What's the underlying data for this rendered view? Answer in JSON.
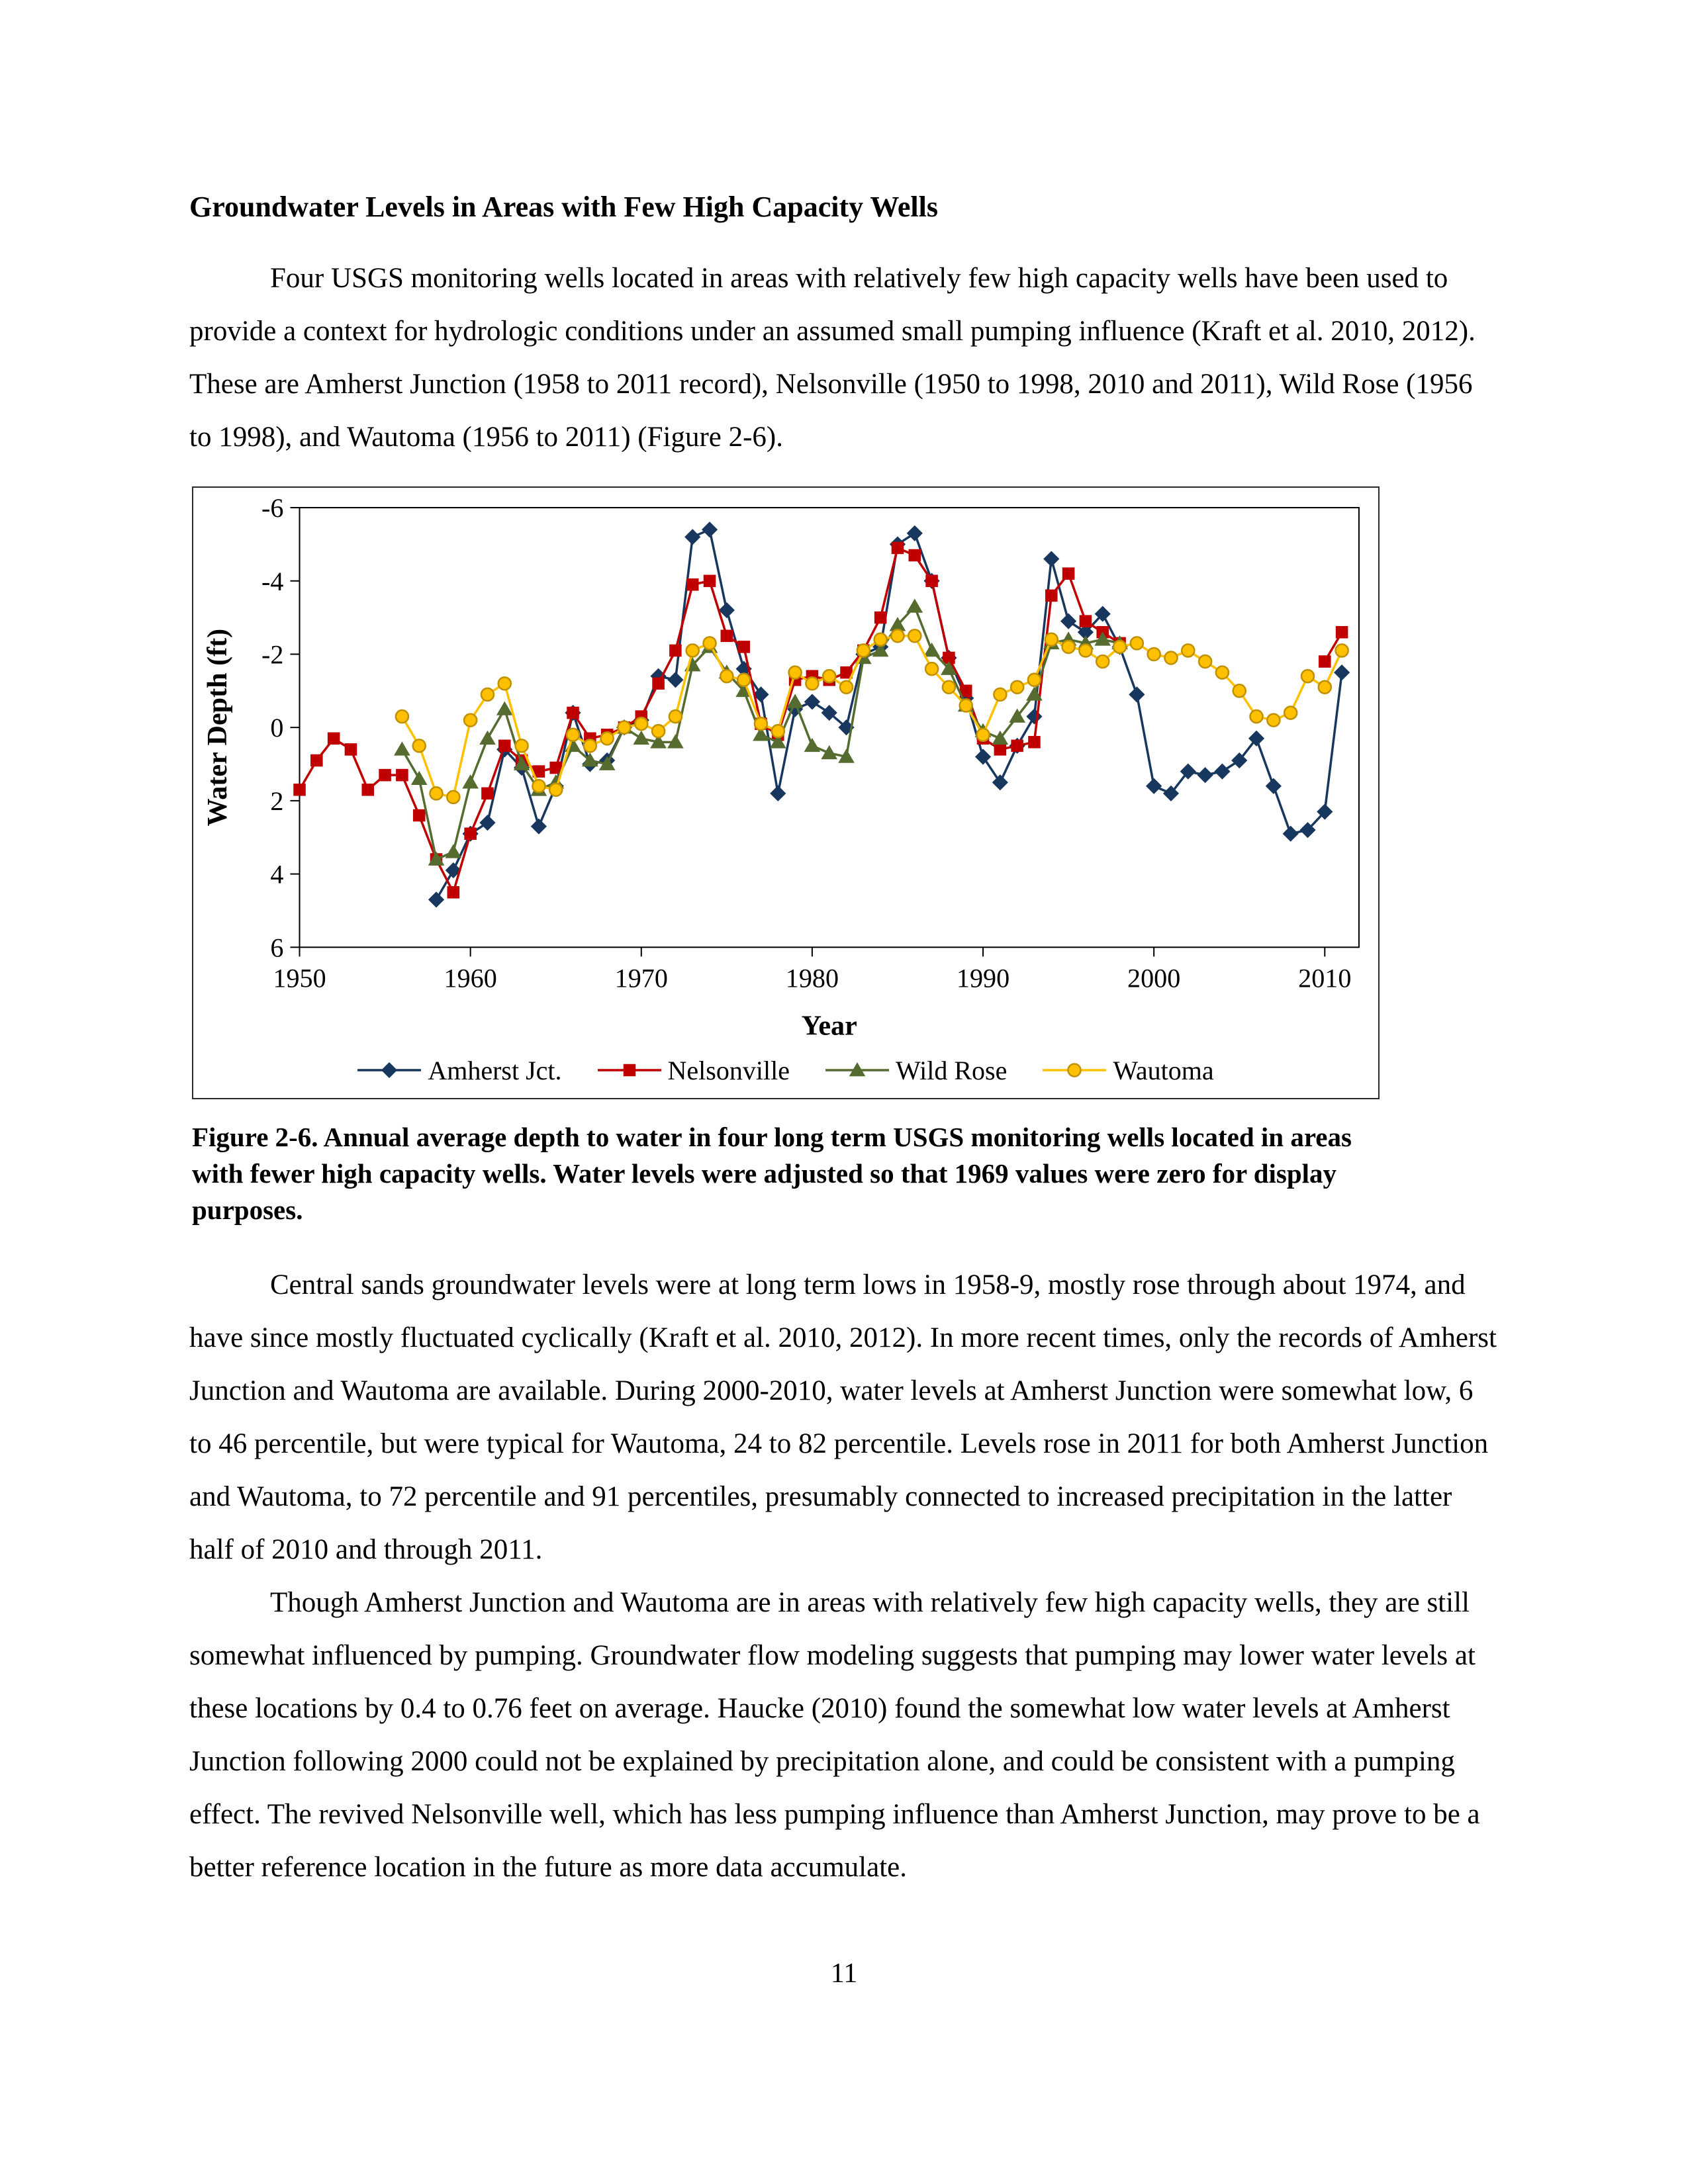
{
  "page": {
    "heading": "Groundwater Levels in Areas with Few High Capacity Wells",
    "para1": "Four USGS monitoring wells located in areas with relatively few high capacity wells have been used to provide a context for hydrologic conditions under an assumed small pumping influence (Kraft et al. 2010, 2012).  These are Amherst Junction (1958 to 2011 record), Nelsonville (1950 to 1998, 2010 and 2011), Wild Rose (1956 to 1998), and Wautoma (1956 to 2011) (Figure 2-6).",
    "caption": "Figure 2-6.  Annual average depth to water in four long term USGS monitoring wells located in areas with fewer high capacity wells.  Water levels were adjusted so that 1969 values were zero for display purposes.",
    "para2": "Central sands groundwater levels were at long term lows in 1958-9, mostly rose through about 1974, and have since mostly fluctuated cyclically (Kraft et al. 2010, 2012).  In more recent times, only the records of Amherst Junction and Wautoma are available.  During 2000-2010, water levels at Amherst Junction were somewhat low, 6 to 46 percentile, but were typical for Wautoma, 24 to 82 percentile.  Levels rose in 2011 for both Amherst Junction and Wautoma, to 72 percentile and 91 percentiles, presumably connected to increased precipitation in the latter half of 2010 and through 2011.",
    "para3": "Though Amherst Junction and Wautoma are in areas with relatively few high capacity wells, they are still somewhat influenced by pumping.  Groundwater flow modeling suggests that pumping may lower water levels at these locations by 0.4 to 0.76 feet on average.  Haucke (2010) found the somewhat low water levels at Amherst Junction following 2000 could not be explained by precipitation alone, and could be consistent with a pumping effect. The revived Nelsonville well, which has less pumping influence than Amherst Junction, may prove to be a better reference location in the future as more data accumulate.",
    "page_number": "11"
  },
  "chart_data": {
    "type": "line",
    "title": "",
    "xlabel": "Year",
    "ylabel": "Water Depth (ft)",
    "xlim": [
      1950,
      2012
    ],
    "ylim_top_bottom": [
      -6,
      6
    ],
    "y_inverted": true,
    "grid": false,
    "legend_position": "bottom",
    "x_ticks": [
      1950,
      1960,
      1970,
      1980,
      1990,
      2000,
      2010
    ],
    "y_ticks": [
      -6,
      -4,
      -2,
      0,
      2,
      4,
      6
    ],
    "series": [
      {
        "name": "Amherst Jct.",
        "color": "#17375E",
        "marker": "diamond",
        "points": [
          [
            1958,
            4.7
          ],
          [
            1959,
            3.9
          ],
          [
            1960,
            2.9
          ],
          [
            1961,
            2.6
          ],
          [
            1962,
            0.6
          ],
          [
            1963,
            1.1
          ],
          [
            1964,
            2.7
          ],
          [
            1965,
            1.6
          ],
          [
            1966,
            -0.4
          ],
          [
            1967,
            1.0
          ],
          [
            1968,
            0.9
          ],
          [
            1969,
            0.0
          ],
          [
            1970,
            -0.2
          ],
          [
            1971,
            -1.4
          ],
          [
            1972,
            -1.3
          ],
          [
            1973,
            -5.2
          ],
          [
            1974,
            -5.4
          ],
          [
            1975,
            -3.2
          ],
          [
            1976,
            -1.6
          ],
          [
            1977,
            -0.9
          ],
          [
            1978,
            1.8
          ],
          [
            1979,
            -0.5
          ],
          [
            1980,
            -0.7
          ],
          [
            1981,
            -0.4
          ],
          [
            1982,
            0.0
          ],
          [
            1983,
            -2.0
          ],
          [
            1984,
            -2.2
          ],
          [
            1985,
            -5.0
          ],
          [
            1986,
            -5.3
          ],
          [
            1987,
            -4.0
          ],
          [
            1988,
            -1.9
          ],
          [
            1989,
            -0.8
          ],
          [
            1990,
            0.8
          ],
          [
            1991,
            1.5
          ],
          [
            1992,
            0.5
          ],
          [
            1993,
            -0.3
          ],
          [
            1994,
            -4.6
          ],
          [
            1995,
            -2.9
          ],
          [
            1996,
            -2.6
          ],
          [
            1997,
            -3.1
          ],
          [
            1998,
            -2.2
          ],
          [
            1999,
            -0.9
          ],
          [
            2000,
            1.6
          ],
          [
            2001,
            1.8
          ],
          [
            2002,
            1.2
          ],
          [
            2003,
            1.3
          ],
          [
            2004,
            1.2
          ],
          [
            2005,
            0.9
          ],
          [
            2006,
            0.3
          ],
          [
            2007,
            1.6
          ],
          [
            2008,
            2.9
          ],
          [
            2009,
            2.8
          ],
          [
            2010,
            2.3
          ],
          [
            2011,
            -1.5
          ]
        ]
      },
      {
        "name": "Nelsonville",
        "color": "#C00000",
        "marker": "square",
        "points": [
          [
            1950,
            1.7
          ],
          [
            1951,
            0.9
          ],
          [
            1952,
            0.3
          ],
          [
            1953,
            0.6
          ],
          [
            1954,
            1.7
          ],
          [
            1955,
            1.3
          ],
          [
            1956,
            1.3
          ],
          [
            1957,
            2.4
          ],
          [
            1958,
            3.6
          ],
          [
            1959,
            4.5
          ],
          [
            1960,
            2.9
          ],
          [
            1961,
            1.8
          ],
          [
            1962,
            0.5
          ],
          [
            1963,
            0.9
          ],
          [
            1964,
            1.2
          ],
          [
            1965,
            1.1
          ],
          [
            1966,
            -0.4
          ],
          [
            1967,
            0.3
          ],
          [
            1968,
            0.2
          ],
          [
            1969,
            0.0
          ],
          [
            1970,
            -0.3
          ],
          [
            1971,
            -1.2
          ],
          [
            1972,
            -2.1
          ],
          [
            1973,
            -3.9
          ],
          [
            1974,
            -4.0
          ],
          [
            1975,
            -2.5
          ],
          [
            1976,
            -2.2
          ],
          [
            1977,
            -0.1
          ],
          [
            1978,
            0.2
          ],
          [
            1979,
            -1.3
          ],
          [
            1980,
            -1.4
          ],
          [
            1981,
            -1.3
          ],
          [
            1982,
            -1.5
          ],
          [
            1983,
            -2.1
          ],
          [
            1984,
            -3.0
          ],
          [
            1985,
            -4.9
          ],
          [
            1986,
            -4.7
          ],
          [
            1987,
            -4.0
          ],
          [
            1988,
            -1.9
          ],
          [
            1989,
            -1.0
          ],
          [
            1990,
            0.3
          ],
          [
            1991,
            0.6
          ],
          [
            1992,
            0.5
          ],
          [
            1993,
            0.4
          ],
          [
            1994,
            -3.6
          ],
          [
            1995,
            -4.2
          ],
          [
            1996,
            -2.9
          ],
          [
            1997,
            -2.6
          ],
          [
            1998,
            -2.3
          ],
          null,
          [
            2010,
            -1.8
          ],
          [
            2011,
            -2.6
          ]
        ]
      },
      {
        "name": "Wild Rose",
        "color": "#556B2F",
        "marker": "triangle",
        "points": [
          [
            1956,
            0.6
          ],
          [
            1957,
            1.4
          ],
          [
            1958,
            3.6
          ],
          [
            1959,
            3.4
          ],
          [
            1960,
            1.5
          ],
          [
            1961,
            0.3
          ],
          [
            1962,
            -0.5
          ],
          [
            1963,
            1.0
          ],
          [
            1964,
            1.7
          ],
          [
            1965,
            1.5
          ],
          [
            1966,
            0.5
          ],
          [
            1967,
            0.9
          ],
          [
            1968,
            1.0
          ],
          [
            1969,
            0.0
          ],
          [
            1970,
            0.3
          ],
          [
            1971,
            0.4
          ],
          [
            1972,
            0.4
          ],
          [
            1973,
            -1.7
          ],
          [
            1974,
            -2.2
          ],
          [
            1975,
            -1.5
          ],
          [
            1976,
            -1.0
          ],
          [
            1977,
            0.2
          ],
          [
            1978,
            0.4
          ],
          [
            1979,
            -0.7
          ],
          [
            1980,
            0.5
          ],
          [
            1981,
            0.7
          ],
          [
            1982,
            0.8
          ],
          [
            1983,
            -1.9
          ],
          [
            1984,
            -2.1
          ],
          [
            1985,
            -2.8
          ],
          [
            1986,
            -3.3
          ],
          [
            1987,
            -2.1
          ],
          [
            1988,
            -1.6
          ],
          [
            1989,
            -0.6
          ],
          [
            1990,
            0.1
          ],
          [
            1991,
            0.3
          ],
          [
            1992,
            -0.3
          ],
          [
            1993,
            -0.9
          ],
          [
            1994,
            -2.3
          ],
          [
            1995,
            -2.4
          ],
          [
            1996,
            -2.3
          ],
          [
            1997,
            -2.4
          ],
          [
            1998,
            -2.3
          ]
        ]
      },
      {
        "name": "Wautoma",
        "color": "#FFC000",
        "marker": "circle",
        "marker_stroke": "#BF9000",
        "points": [
          [
            1956,
            -0.3
          ],
          [
            1957,
            0.5
          ],
          [
            1958,
            1.8
          ],
          [
            1959,
            1.9
          ],
          [
            1960,
            -0.2
          ],
          [
            1961,
            -0.9
          ],
          [
            1962,
            -1.2
          ],
          [
            1963,
            0.5
          ],
          [
            1964,
            1.6
          ],
          [
            1965,
            1.7
          ],
          [
            1966,
            0.2
          ],
          [
            1967,
            0.5
          ],
          [
            1968,
            0.3
          ],
          [
            1969,
            0.0
          ],
          [
            1970,
            -0.1
          ],
          [
            1971,
            0.1
          ],
          [
            1972,
            -0.3
          ],
          [
            1973,
            -2.1
          ],
          [
            1974,
            -2.3
          ],
          [
            1975,
            -1.4
          ],
          [
            1976,
            -1.3
          ],
          [
            1977,
            -0.1
          ],
          [
            1978,
            0.1
          ],
          [
            1979,
            -1.5
          ],
          [
            1980,
            -1.2
          ],
          [
            1981,
            -1.4
          ],
          [
            1982,
            -1.1
          ],
          [
            1983,
            -2.1
          ],
          [
            1984,
            -2.4
          ],
          [
            1985,
            -2.5
          ],
          [
            1986,
            -2.5
          ],
          [
            1987,
            -1.6
          ],
          [
            1988,
            -1.1
          ],
          [
            1989,
            -0.6
          ],
          [
            1990,
            0.2
          ],
          [
            1991,
            -0.9
          ],
          [
            1992,
            -1.1
          ],
          [
            1993,
            -1.3
          ],
          [
            1994,
            -2.4
          ],
          [
            1995,
            -2.2
          ],
          [
            1996,
            -2.1
          ],
          [
            1997,
            -1.8
          ],
          [
            1998,
            -2.2
          ],
          [
            1999,
            -2.3
          ],
          [
            2000,
            -2.0
          ],
          [
            2001,
            -1.9
          ],
          [
            2002,
            -2.1
          ],
          [
            2003,
            -1.8
          ],
          [
            2004,
            -1.5
          ],
          [
            2005,
            -1.0
          ],
          [
            2006,
            -0.3
          ],
          [
            2007,
            -0.2
          ],
          [
            2008,
            -0.4
          ],
          [
            2009,
            -1.4
          ],
          [
            2010,
            -1.1
          ],
          [
            2011,
            -2.1
          ]
        ]
      }
    ]
  }
}
